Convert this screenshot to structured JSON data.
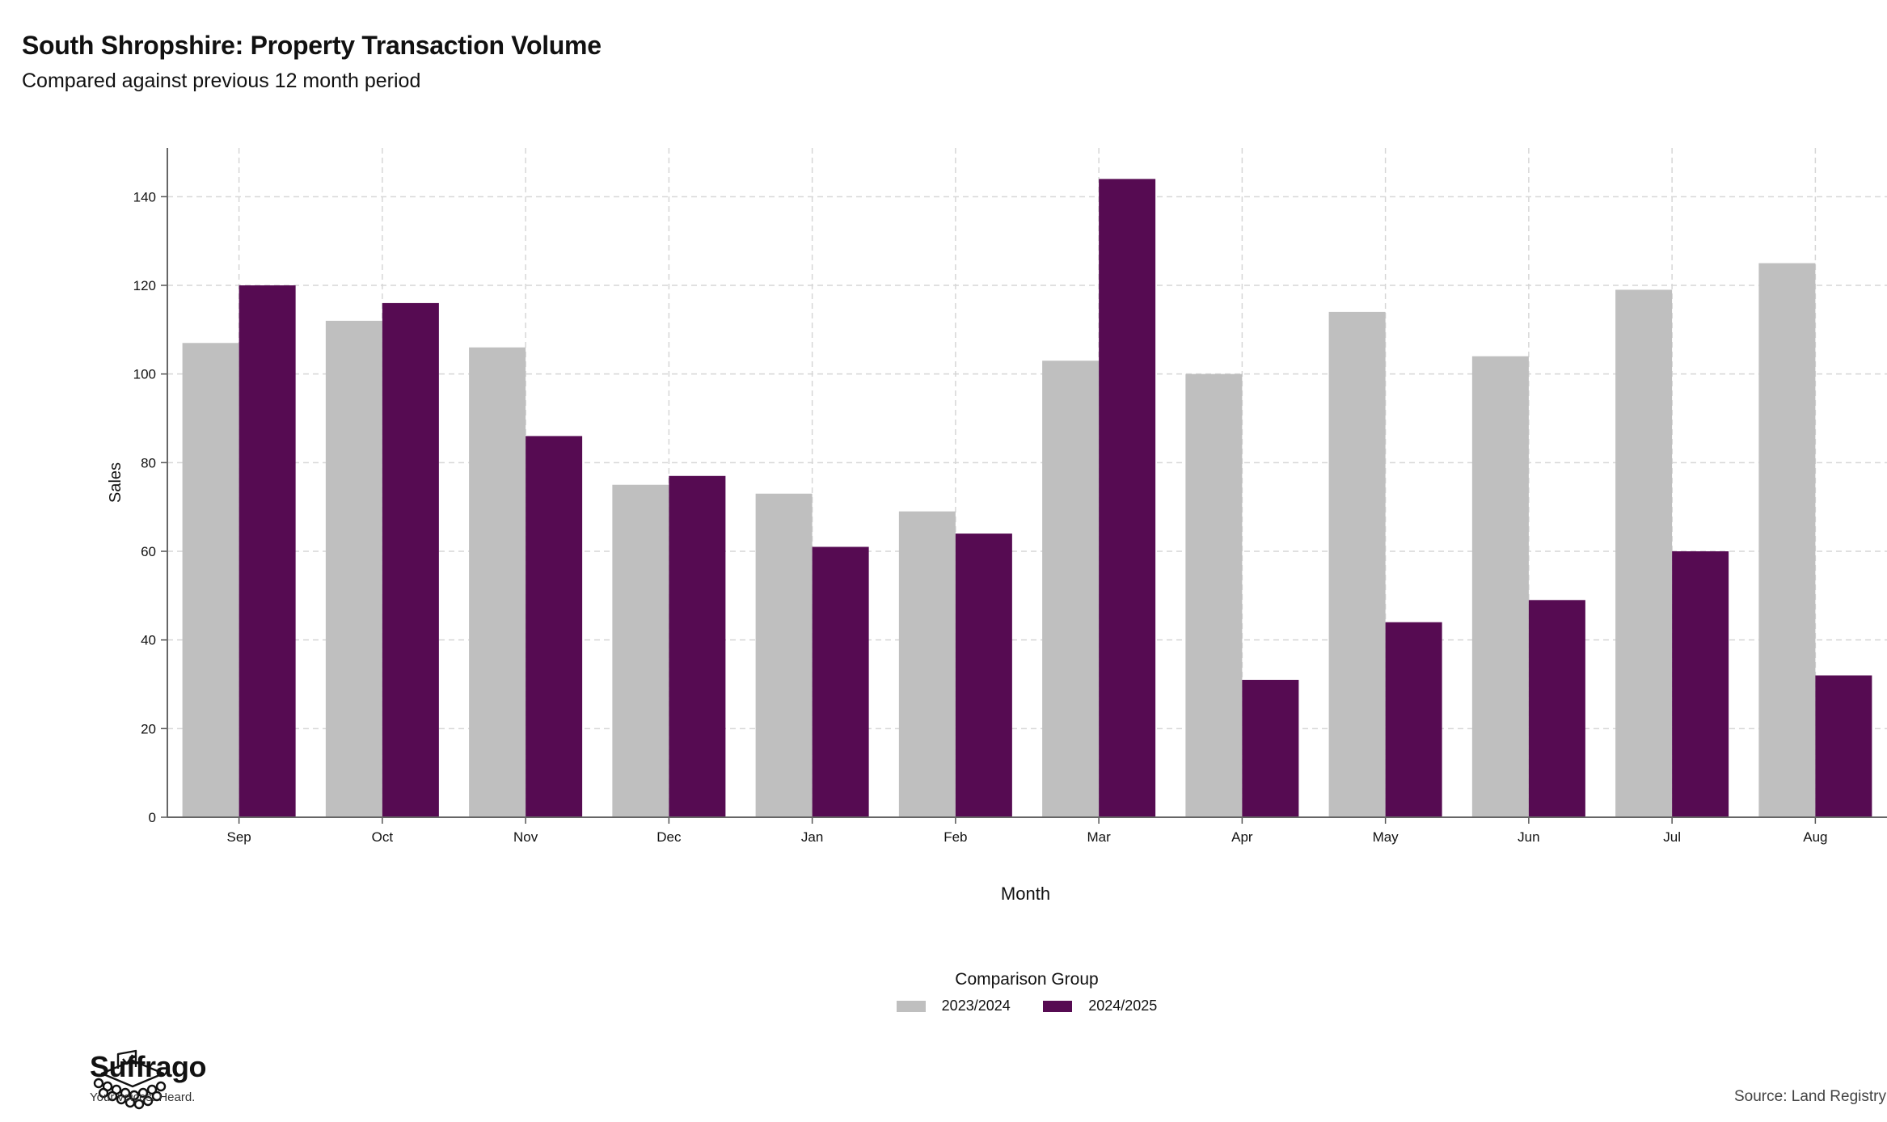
{
  "header": {
    "title": "South Shropshire: Property Transaction Volume",
    "subtitle": "Compared against previous 12 month period"
  },
  "legend": {
    "title": "Comparison Group",
    "items": [
      {
        "label": "2023/2024",
        "color": "#bfbfbf"
      },
      {
        "label": "2024/2025",
        "color": "#560b52"
      }
    ]
  },
  "branding": {
    "name": "Suffrago",
    "tagline": "Your voices. Heard.",
    "icon": "ballot-box-icon"
  },
  "source": "Source: Land Registry",
  "chart_data": {
    "type": "bar",
    "xlabel": "Month",
    "ylabel": "Sales",
    "categories": [
      "Sep",
      "Oct",
      "Nov",
      "Dec",
      "Jan",
      "Feb",
      "Mar",
      "Apr",
      "May",
      "Jun",
      "Jul",
      "Aug"
    ],
    "series": [
      {
        "name": "2023/2024",
        "color": "#bfbfbf",
        "values": [
          107,
          112,
          106,
          75,
          73,
          69,
          103,
          100,
          114,
          104,
          119,
          125
        ]
      },
      {
        "name": "2024/2025",
        "color": "#560b52",
        "values": [
          120,
          116,
          86,
          77,
          61,
          64,
          144,
          31,
          44,
          49,
          60,
          32
        ]
      }
    ],
    "ylim": [
      0,
      151
    ],
    "yticks": [
      0,
      20,
      40,
      60,
      80,
      100,
      120,
      140
    ],
    "grid": true,
    "legend_position": "bottom"
  }
}
